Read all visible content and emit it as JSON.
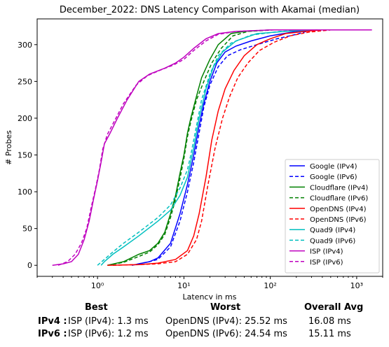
{
  "chart_data": {
    "type": "line",
    "title": "December_2022: DNS Latency Comparison with Akamai (median)",
    "xlabel": "Latency in ms",
    "ylabel": "# Probes",
    "xscale": "log",
    "xlim": [
      0.2,
      2000
    ],
    "ylim": [
      -15,
      335
    ],
    "xticks": [
      {
        "value": 1,
        "label": "10⁰"
      },
      {
        "value": 10,
        "label": "10¹"
      },
      {
        "value": 100,
        "label": "10²"
      },
      {
        "value": 1000,
        "label": "10³"
      }
    ],
    "yticks": [
      0,
      50,
      100,
      150,
      200,
      250,
      300
    ],
    "legend_position": "lower-right",
    "grid": false,
    "series": [
      {
        "name": "Google (IPv4)",
        "color": "#0000ff",
        "dash": "solid",
        "points": [
          [
            2.5,
            0
          ],
          [
            3,
            2
          ],
          [
            4,
            5
          ],
          [
            5,
            10
          ],
          [
            7,
            30
          ],
          [
            9,
            70
          ],
          [
            11,
            110
          ],
          [
            13,
            150
          ],
          [
            15,
            190
          ],
          [
            17,
            220
          ],
          [
            20,
            250
          ],
          [
            24,
            275
          ],
          [
            30,
            290
          ],
          [
            40,
            298
          ],
          [
            60,
            305
          ],
          [
            100,
            312
          ],
          [
            200,
            318
          ],
          [
            300,
            320
          ]
        ]
      },
      {
        "name": "Google (IPv6)",
        "color": "#0000ff",
        "dash": "dashed",
        "points": [
          [
            2.5,
            0
          ],
          [
            3,
            2
          ],
          [
            4,
            5
          ],
          [
            5,
            8
          ],
          [
            7,
            25
          ],
          [
            9,
            60
          ],
          [
            11,
            100
          ],
          [
            13,
            140
          ],
          [
            15,
            180
          ],
          [
            17,
            215
          ],
          [
            20,
            245
          ],
          [
            25,
            270
          ],
          [
            32,
            285
          ],
          [
            45,
            293
          ],
          [
            70,
            300
          ],
          [
            120,
            308
          ],
          [
            200,
            314
          ],
          [
            300,
            320
          ]
        ]
      },
      {
        "name": "Cloudflare (IPv4)",
        "color": "#008000",
        "dash": "solid",
        "points": [
          [
            1.3,
            0
          ],
          [
            2,
            5
          ],
          [
            3,
            15
          ],
          [
            4,
            20
          ],
          [
            5,
            30
          ],
          [
            6,
            45
          ],
          [
            7,
            70
          ],
          [
            8,
            95
          ],
          [
            9,
            125
          ],
          [
            10,
            150
          ],
          [
            11,
            180
          ],
          [
            12,
            200
          ],
          [
            14,
            230
          ],
          [
            16,
            255
          ],
          [
            20,
            280
          ],
          [
            25,
            300
          ],
          [
            35,
            315
          ],
          [
            50,
            318
          ],
          [
            100,
            320
          ]
        ]
      },
      {
        "name": "Cloudflare (IPv6)",
        "color": "#008000",
        "dash": "dashed",
        "points": [
          [
            1.3,
            0
          ],
          [
            2,
            4
          ],
          [
            3,
            12
          ],
          [
            4,
            18
          ],
          [
            5,
            28
          ],
          [
            6,
            42
          ],
          [
            7,
            65
          ],
          [
            8,
            90
          ],
          [
            9,
            118
          ],
          [
            10,
            145
          ],
          [
            11,
            175
          ],
          [
            12,
            195
          ],
          [
            14,
            225
          ],
          [
            17,
            250
          ],
          [
            21,
            275
          ],
          [
            27,
            295
          ],
          [
            37,
            312
          ],
          [
            55,
            318
          ],
          [
            110,
            320
          ]
        ]
      },
      {
        "name": "OpenDNS (IPv4)",
        "color": "#ff0000",
        "dash": "solid",
        "points": [
          [
            1.3,
            0
          ],
          [
            3,
            1
          ],
          [
            5,
            3
          ],
          [
            8,
            8
          ],
          [
            11,
            20
          ],
          [
            13,
            40
          ],
          [
            15,
            70
          ],
          [
            18,
            120
          ],
          [
            21,
            170
          ],
          [
            25,
            210
          ],
          [
            30,
            240
          ],
          [
            38,
            265
          ],
          [
            50,
            285
          ],
          [
            70,
            300
          ],
          [
            100,
            308
          ],
          [
            150,
            315
          ],
          [
            250,
            318
          ],
          [
            400,
            320
          ],
          [
            800,
            320
          ]
        ]
      },
      {
        "name": "OpenDNS (IPv6)",
        "color": "#ff0000",
        "dash": "dashed",
        "points": [
          [
            1.5,
            0
          ],
          [
            3,
            1
          ],
          [
            5,
            2
          ],
          [
            8,
            5
          ],
          [
            11,
            15
          ],
          [
            14,
            35
          ],
          [
            16,
            60
          ],
          [
            19,
            110
          ],
          [
            23,
            160
          ],
          [
            28,
            200
          ],
          [
            34,
            230
          ],
          [
            42,
            255
          ],
          [
            55,
            275
          ],
          [
            75,
            292
          ],
          [
            110,
            303
          ],
          [
            170,
            312
          ],
          [
            280,
            317
          ],
          [
            500,
            320
          ]
        ]
      },
      {
        "name": "Quad9 (IPv4)",
        "color": "#00bfbf",
        "dash": "solid",
        "points": [
          [
            1.1,
            0
          ],
          [
            1.2,
            5
          ],
          [
            1.5,
            15
          ],
          [
            2,
            25
          ],
          [
            3,
            40
          ],
          [
            5,
            60
          ],
          [
            7,
            75
          ],
          [
            9,
            95
          ],
          [
            11,
            120
          ],
          [
            13,
            160
          ],
          [
            15,
            200
          ],
          [
            18,
            240
          ],
          [
            22,
            270
          ],
          [
            28,
            290
          ],
          [
            40,
            305
          ],
          [
            70,
            315
          ],
          [
            150,
            318
          ],
          [
            300,
            320
          ]
        ]
      },
      {
        "name": "Quad9 (IPv6)",
        "color": "#00bfbf",
        "dash": "dashed",
        "points": [
          [
            1.0,
            0
          ],
          [
            1.2,
            8
          ],
          [
            1.5,
            18
          ],
          [
            2,
            30
          ],
          [
            3,
            45
          ],
          [
            5,
            65
          ],
          [
            7,
            82
          ],
          [
            9,
            105
          ],
          [
            11,
            130
          ],
          [
            12,
            150
          ],
          [
            14,
            190
          ],
          [
            16,
            225
          ],
          [
            20,
            260
          ],
          [
            25,
            285
          ],
          [
            35,
            302
          ],
          [
            60,
            313
          ],
          [
            130,
            318
          ],
          [
            300,
            320
          ]
        ]
      },
      {
        "name": "ISP (IPv4)",
        "color": "#bf00bf",
        "dash": "solid",
        "points": [
          [
            0.3,
            0
          ],
          [
            0.4,
            2
          ],
          [
            0.5,
            5
          ],
          [
            0.6,
            15
          ],
          [
            0.7,
            35
          ],
          [
            0.8,
            60
          ],
          [
            0.9,
            90
          ],
          [
            1.0,
            115
          ],
          [
            1.1,
            140
          ],
          [
            1.2,
            165
          ],
          [
            1.4,
            180
          ],
          [
            1.7,
            200
          ],
          [
            2.2,
            225
          ],
          [
            3,
            250
          ],
          [
            4,
            260
          ],
          [
            6,
            268
          ],
          [
            8,
            275
          ],
          [
            10,
            283
          ],
          [
            13,
            295
          ],
          [
            18,
            308
          ],
          [
            25,
            315
          ],
          [
            40,
            318
          ],
          [
            100,
            320
          ],
          [
            1500,
            320
          ]
        ]
      },
      {
        "name": "ISP (IPv6)",
        "color": "#bf00bf",
        "dash": "dashed",
        "points": [
          [
            0.35,
            0
          ],
          [
            0.45,
            5
          ],
          [
            0.55,
            15
          ],
          [
            0.65,
            30
          ],
          [
            0.75,
            50
          ],
          [
            0.85,
            80
          ],
          [
            0.95,
            105
          ],
          [
            1.05,
            130
          ],
          [
            1.15,
            158
          ],
          [
            1.3,
            178
          ],
          [
            1.6,
            198
          ],
          [
            2,
            220
          ],
          [
            2.8,
            245
          ],
          [
            3.8,
            258
          ],
          [
            5.5,
            266
          ],
          [
            7.5,
            272
          ],
          [
            10,
            280
          ],
          [
            13,
            292
          ],
          [
            18,
            305
          ],
          [
            25,
            314
          ],
          [
            40,
            318
          ],
          [
            100,
            320
          ],
          [
            1500,
            320
          ]
        ]
      }
    ]
  },
  "summary": {
    "headers": {
      "best": "Best",
      "worst": "Worst",
      "avg": "Overall Avg"
    },
    "rows": [
      {
        "label": "IPv4 :",
        "best": "ISP (IPv4): 1.3 ms",
        "worst": "OpenDNS (IPv4): 25.52 ms",
        "avg": "16.08 ms"
      },
      {
        "label": "IPv6 :",
        "best": "ISP (IPv6): 1.2 ms",
        "worst": "OpenDNS (IPv6): 24.54 ms",
        "avg": "15.11 ms"
      }
    ]
  }
}
